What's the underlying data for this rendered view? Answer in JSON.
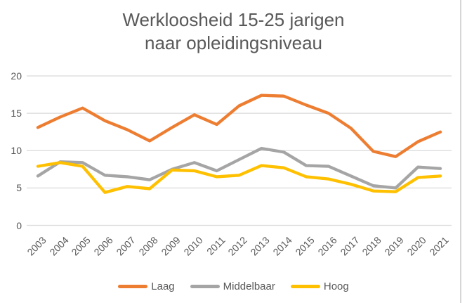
{
  "chart_data": {
    "type": "line",
    "title": "Werkloosheid 15-25 jarigen naar opleidingsniveau",
    "title_lines": [
      "Werkloosheid 15-25 jarigen",
      "naar opleidingsniveau"
    ],
    "categories": [
      "2003",
      "2004",
      "2005",
      "2006",
      "2007",
      "2008",
      "2009",
      "2010",
      "2011",
      "2012",
      "2013",
      "2014",
      "2015",
      "2016",
      "2017",
      "2018",
      "2019",
      "2020",
      "2021"
    ],
    "series": [
      {
        "name": "Laag",
        "color": "#ED7D31",
        "values": [
          13.1,
          14.5,
          15.7,
          14.0,
          12.8,
          11.3,
          13.1,
          14.8,
          13.5,
          16.0,
          17.4,
          17.3,
          16.1,
          15.0,
          13.0,
          9.9,
          9.2,
          11.2,
          12.5
        ]
      },
      {
        "name": "Middelbaar",
        "color": "#A5A5A5",
        "values": [
          6.6,
          8.5,
          8.4,
          6.7,
          6.5,
          6.1,
          7.5,
          8.4,
          7.3,
          8.8,
          10.3,
          9.8,
          8.0,
          7.9,
          6.6,
          5.3,
          5.0,
          7.8,
          7.6
        ]
      },
      {
        "name": "Hoog",
        "color": "#FFC000",
        "values": [
          7.9,
          8.4,
          7.9,
          4.4,
          5.2,
          4.9,
          7.4,
          7.3,
          6.5,
          6.7,
          8.0,
          7.7,
          6.5,
          6.2,
          5.5,
          4.6,
          4.5,
          6.4,
          6.6
        ]
      }
    ],
    "xlabel": "",
    "ylabel": "",
    "yticks": [
      0,
      5,
      10,
      15,
      20
    ],
    "ylim": [
      0,
      20
    ],
    "grid": true,
    "legend_position": "bottom",
    "gridline_color": "#D9D9D9",
    "text_color": "#595959",
    "background_color": "#FFFFFF"
  }
}
